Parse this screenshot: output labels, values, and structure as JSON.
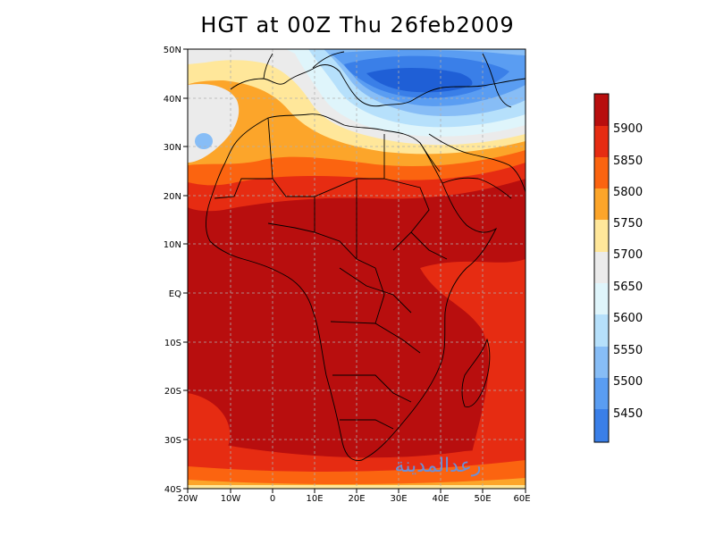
{
  "title": "HGT at 00Z Thu 26feb2009",
  "watermark": "رعدالمدينة",
  "colors": {
    "c5400": "#1f5fd6",
    "c5450": "#3a7fe8",
    "c5500": "#5a9df2",
    "c5550": "#87bdf6",
    "c5600": "#b6e0fb",
    "c5650": "#dff5fb",
    "c5700": "#ebebeb",
    "c5750": "#ffe79a",
    "c5800": "#fca52a",
    "c5850": "#fb6410",
    "c5900": "#e62c12",
    "c5950": "#b80e0e",
    "border": "#000000",
    "grid": "#b0b0b0"
  },
  "lat_labels": [
    "50N",
    "40N",
    "30N",
    "20N",
    "10N",
    "EQ",
    "10S",
    "20S",
    "30S",
    "40S"
  ],
  "lon_labels": [
    "20W",
    "10W",
    "0",
    "10E",
    "20E",
    "30E",
    "40E",
    "50E",
    "60E"
  ],
  "colorbar": {
    "levels": [
      "5450",
      "5500",
      "5550",
      "5600",
      "5650",
      "5700",
      "5750",
      "5800",
      "5850",
      "5900"
    ]
  }
}
